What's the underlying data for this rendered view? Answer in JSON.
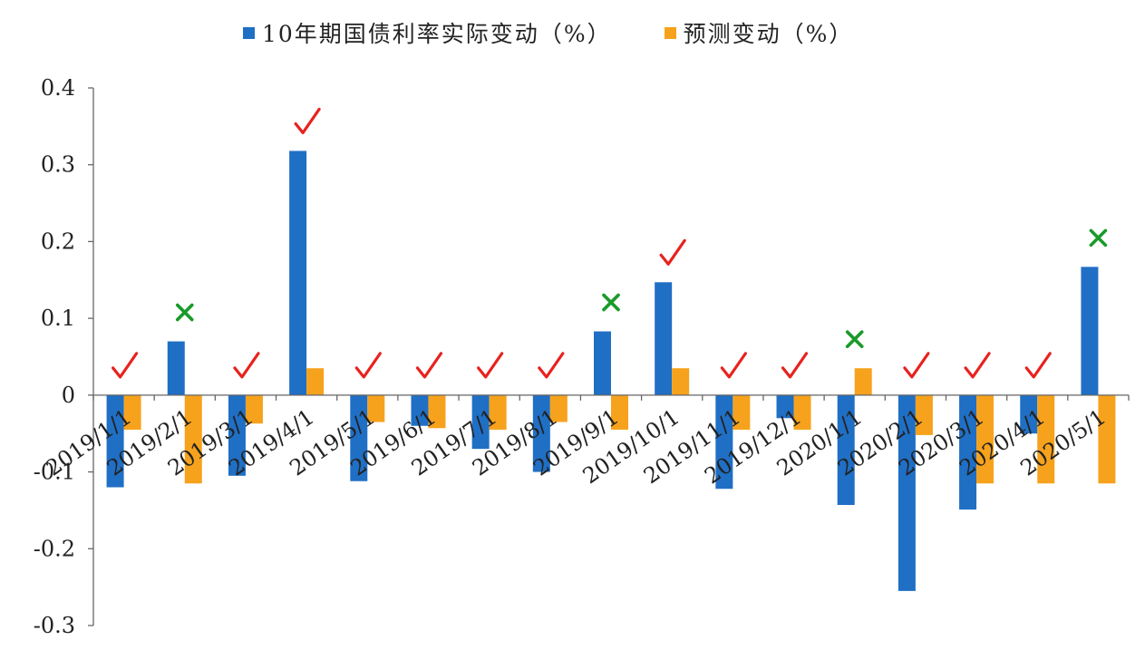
{
  "chart_data": {
    "type": "bar",
    "title": "",
    "xlabel": "",
    "ylabel": "",
    "ylim": [
      -0.3,
      0.4
    ],
    "yticks": [
      0.4,
      0.3,
      0.2,
      0.1,
      0,
      -0.1,
      -0.2,
      -0.3
    ],
    "ytick_labels": [
      "0.4",
      "0.3",
      "0.2",
      "0.1",
      "0",
      "-0.1",
      "-0.2",
      "-0.3"
    ],
    "categories": [
      "2019/1/1",
      "2019/2/1",
      "2019/3/1",
      "2019/4/1",
      "2019/5/1",
      "2019/6/1",
      "2019/7/1",
      "2019/8/1",
      "2019/9/1",
      "2019/10/1",
      "2019/11/1",
      "2019/12/1",
      "2020/1/1",
      "2020/2/1",
      "2020/3/1",
      "2020/4/1",
      "2020/5/1"
    ],
    "series": [
      {
        "name": "10年期国债利率实际变动（%）",
        "color": "#1f6fc5",
        "values": [
          -0.12,
          0.07,
          -0.105,
          0.318,
          -0.112,
          -0.04,
          -0.07,
          -0.1,
          0.083,
          0.147,
          -0.122,
          -0.03,
          -0.143,
          -0.255,
          -0.149,
          -0.05,
          0.167
        ]
      },
      {
        "name": "预测变动（%）",
        "color": "#f7a21c",
        "values": [
          -0.045,
          -0.115,
          -0.037,
          0.035,
          -0.035,
          -0.043,
          -0.045,
          -0.035,
          -0.045,
          0.035,
          -0.045,
          -0.045,
          0.035,
          -0.052,
          -0.115,
          -0.115,
          -0.115
        ]
      }
    ],
    "markers": [
      "check",
      "cross",
      "check",
      "check",
      "check",
      "check",
      "check",
      "check",
      "cross",
      "check",
      "check",
      "check",
      "cross",
      "check",
      "check",
      "check",
      "cross"
    ],
    "marker_colors": {
      "check": "#e8221e",
      "cross": "#1a9a2a"
    },
    "grid": false,
    "legend": "top"
  }
}
